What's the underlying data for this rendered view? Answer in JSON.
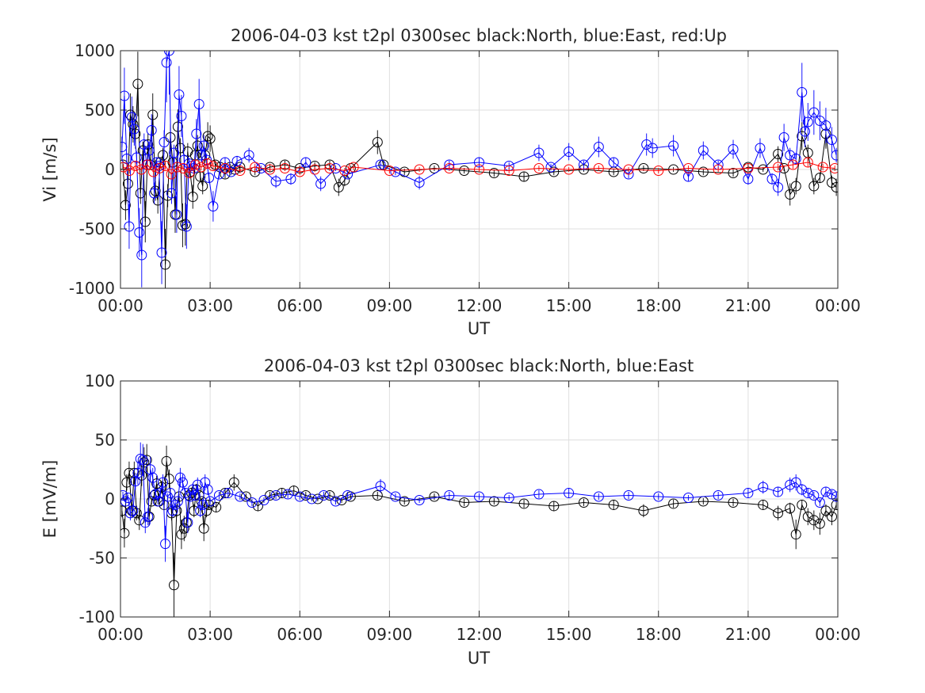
{
  "chart_data": [
    {
      "type": "scatter",
      "title": "2006-04-03 kst t2pl 0300sec black:North, blue:East, red:Up",
      "xlabel": "UT",
      "ylabel": "Vi [m/s]",
      "xlim_hours": [
        0,
        24
      ],
      "ylim": [
        -1000,
        1000
      ],
      "xticks": [
        "00:00",
        "03:00",
        "06:00",
        "09:00",
        "12:00",
        "15:00",
        "18:00",
        "21:00",
        "00:00"
      ],
      "yticks": [
        "-1000",
        "-500",
        "0",
        "500",
        "1000"
      ],
      "grid": true,
      "series": [
        {
          "color": "#000000",
          "x_hours": [
            0.08,
            0.17,
            0.25,
            0.33,
            0.42,
            0.5,
            0.58,
            0.67,
            0.75,
            0.83,
            0.92,
            1.0,
            1.08,
            1.17,
            1.25,
            1.33,
            1.42,
            1.5,
            1.58,
            1.67,
            1.75,
            1.83,
            1.92,
            2.0,
            2.08,
            2.17,
            2.25,
            2.33,
            2.42,
            2.5,
            2.58,
            2.67,
            2.75,
            2.83,
            2.92,
            3.0,
            3.17,
            3.33,
            3.5,
            3.67,
            3.83,
            4.0,
            4.5,
            5.0,
            5.5,
            6.0,
            6.5,
            7.0,
            7.3,
            7.5,
            7.7,
            8.6,
            8.8,
            9.5,
            10.5,
            11.5,
            12.5,
            13.5,
            14.5,
            15.5,
            16.5,
            17.5,
            18.5,
            19.5,
            20.5,
            21.0,
            21.5,
            22.0,
            22.2,
            22.4,
            22.6,
            22.8,
            23.0,
            23.2,
            23.4,
            23.6,
            23.8,
            23.95
          ],
          "y": [
            40,
            -300,
            -120,
            460,
            380,
            300,
            720,
            -200,
            160,
            -440,
            210,
            40,
            460,
            -180,
            -260,
            60,
            120,
            -800,
            -220,
            270,
            60,
            -380,
            360,
            180,
            -470,
            -460,
            150,
            -20,
            -230,
            120,
            200,
            -60,
            -140,
            120,
            280,
            260,
            40,
            20,
            -40,
            20,
            0,
            20,
            -20,
            20,
            40,
            10,
            30,
            40,
            -150,
            -90,
            10,
            230,
            40,
            -20,
            10,
            -10,
            -30,
            -60,
            -20,
            0,
            -20,
            10,
            0,
            -20,
            -30,
            20,
            0,
            130,
            10,
            -210,
            -140,
            280,
            140,
            -140,
            -70,
            300,
            -110,
            -150
          ]
        },
        {
          "color": "#0000ff",
          "x_hours": [
            0.05,
            0.13,
            0.21,
            0.29,
            0.38,
            0.46,
            0.54,
            0.63,
            0.71,
            0.79,
            0.88,
            0.96,
            1.04,
            1.13,
            1.21,
            1.29,
            1.38,
            1.46,
            1.54,
            1.63,
            1.71,
            1.79,
            1.88,
            1.96,
            2.04,
            2.13,
            2.21,
            2.29,
            2.38,
            2.46,
            2.54,
            2.63,
            2.71,
            2.79,
            2.88,
            2.96,
            3.1,
            3.3,
            3.5,
            3.7,
            3.9,
            4.3,
            4.7,
            5.2,
            5.7,
            6.2,
            6.7,
            7.2,
            7.6,
            8.7,
            9.2,
            10.0,
            11.0,
            12.0,
            13.0,
            14.0,
            14.4,
            15.0,
            15.5,
            16.0,
            16.5,
            17.0,
            17.6,
            17.8,
            18.5,
            19.0,
            19.5,
            20.0,
            20.5,
            21.0,
            21.4,
            21.8,
            22.0,
            22.2,
            22.4,
            22.6,
            22.8,
            22.9,
            23.0,
            23.2,
            23.4,
            23.6,
            23.8,
            23.95
          ],
          "y": [
            190,
            620,
            90,
            -480,
            440,
            340,
            100,
            -530,
            -720,
            210,
            40,
            160,
            330,
            -200,
            60,
            30,
            -700,
            230,
            900,
            1000,
            -200,
            140,
            -380,
            630,
            450,
            80,
            -480,
            50,
            30,
            10,
            300,
            550,
            120,
            200,
            80,
            -70,
            -310,
            -40,
            60,
            -20,
            70,
            120,
            10,
            -100,
            -80,
            60,
            -120,
            10,
            -40,
            40,
            -20,
            -110,
            40,
            60,
            30,
            140,
            20,
            150,
            40,
            190,
            60,
            -40,
            210,
            180,
            200,
            -60,
            160,
            40,
            170,
            -80,
            180,
            -80,
            -150,
            270,
            120,
            90,
            650,
            320,
            400,
            480,
            410,
            370,
            250,
            120
          ]
        },
        {
          "color": "#ff0000",
          "x_hours": [
            0.1,
            0.3,
            0.5,
            0.7,
            0.9,
            1.1,
            1.3,
            1.5,
            1.7,
            1.9,
            2.1,
            2.3,
            2.5,
            2.7,
            2.9,
            3.1,
            3.5,
            4.0,
            4.5,
            5.0,
            5.5,
            6.0,
            6.5,
            7.0,
            7.5,
            7.8,
            9.0,
            10.0,
            11.0,
            12.0,
            13.0,
            14.0,
            15.0,
            16.0,
            17.0,
            18.0,
            19.0,
            20.0,
            21.0,
            22.0,
            22.5,
            23.0,
            23.5,
            23.9
          ],
          "y": [
            20,
            -10,
            30,
            0,
            40,
            -20,
            10,
            30,
            -40,
            20,
            10,
            -30,
            40,
            20,
            50,
            30,
            10,
            -10,
            20,
            0,
            10,
            -20,
            0,
            10,
            -10,
            20,
            -10,
            0,
            10,
            0,
            -10,
            10,
            0,
            10,
            0,
            -10,
            10,
            0,
            10,
            20,
            40,
            60,
            20,
            10
          ]
        }
      ]
    },
    {
      "type": "scatter",
      "title": "2006-04-03 kst t2pl 0300sec black:North, blue:East",
      "xlabel": "UT",
      "ylabel": "E [mV/m]",
      "xlim_hours": [
        0,
        24
      ],
      "ylim": [
        -100,
        100
      ],
      "xticks": [
        "00:00",
        "03:00",
        "06:00",
        "09:00",
        "12:00",
        "15:00",
        "18:00",
        "21:00",
        "00:00"
      ],
      "yticks": [
        "-100",
        "-50",
        "0",
        "50",
        "100"
      ],
      "grid": true,
      "series": [
        {
          "color": "#000000",
          "x_hours": [
            0.05,
            0.13,
            0.21,
            0.29,
            0.38,
            0.46,
            0.54,
            0.63,
            0.71,
            0.79,
            0.88,
            0.96,
            1.04,
            1.13,
            1.21,
            1.29,
            1.38,
            1.46,
            1.54,
            1.63,
            1.71,
            1.79,
            1.88,
            1.96,
            2.04,
            2.13,
            2.21,
            2.29,
            2.38,
            2.46,
            2.54,
            2.63,
            2.71,
            2.79,
            2.88,
            2.96,
            3.2,
            3.5,
            3.8,
            4.2,
            4.6,
            5.0,
            5.4,
            5.8,
            6.2,
            6.6,
            7.0,
            7.4,
            7.7,
            8.6,
            9.5,
            10.5,
            11.5,
            12.5,
            13.5,
            14.5,
            15.5,
            16.5,
            17.5,
            18.5,
            19.5,
            20.5,
            21.5,
            22.0,
            22.4,
            22.6,
            22.8,
            23.0,
            23.2,
            23.4,
            23.6,
            23.8,
            23.95
          ],
          "y": [
            -10,
            -29,
            14,
            22,
            -10,
            22,
            -12,
            -18,
            20,
            31,
            33,
            -15,
            -2,
            3,
            13,
            -2,
            10,
            -5,
            32,
            17,
            -12,
            -73,
            -10,
            2,
            -30,
            -25,
            -20,
            3,
            5,
            -10,
            8,
            3,
            -2,
            -25,
            -10,
            -5,
            -7,
            5,
            14,
            2,
            -6,
            3,
            5,
            7,
            3,
            0,
            3,
            -1,
            2,
            3,
            -2,
            2,
            -3,
            -2,
            -4,
            -6,
            -3,
            -5,
            -10,
            -4,
            -2,
            -3,
            -5,
            -12,
            -8,
            -30,
            -5,
            -15,
            -18,
            -21,
            -10,
            -15,
            -5
          ]
        },
        {
          "color": "#0000ff",
          "x_hours": [
            0.08,
            0.17,
            0.25,
            0.33,
            0.42,
            0.5,
            0.58,
            0.67,
            0.75,
            0.83,
            0.92,
            1.0,
            1.08,
            1.17,
            1.25,
            1.33,
            1.42,
            1.5,
            1.58,
            1.67,
            1.75,
            1.83,
            1.92,
            2.0,
            2.08,
            2.17,
            2.25,
            2.33,
            2.42,
            2.5,
            2.58,
            2.67,
            2.75,
            2.83,
            2.92,
            3.0,
            3.3,
            3.6,
            4.0,
            4.4,
            4.8,
            5.2,
            5.6,
            6.0,
            6.4,
            6.8,
            7.2,
            7.6,
            8.7,
            9.2,
            10.0,
            11.0,
            12.0,
            13.0,
            14.0,
            15.0,
            16.0,
            17.0,
            18.0,
            19.0,
            20.0,
            21.0,
            21.5,
            22.0,
            22.4,
            22.6,
            22.8,
            23.0,
            23.2,
            23.4,
            23.6,
            23.8,
            23.95
          ],
          "y": [
            3,
            -2,
            1,
            -12,
            -10,
            15,
            22,
            34,
            33,
            -20,
            -15,
            25,
            18,
            4,
            -2,
            5,
            14,
            -38,
            2,
            5,
            -10,
            -5,
            -2,
            18,
            14,
            5,
            -20,
            2,
            8,
            3,
            12,
            -10,
            -5,
            14,
            8,
            -2,
            3,
            5,
            2,
            -3,
            -1,
            3,
            4,
            2,
            0,
            3,
            -2,
            3,
            11,
            2,
            -1,
            3,
            2,
            1,
            4,
            5,
            2,
            3,
            2,
            1,
            3,
            5,
            10,
            6,
            12,
            14,
            8,
            5,
            3,
            -3,
            6,
            4,
            2
          ]
        }
      ]
    }
  ]
}
